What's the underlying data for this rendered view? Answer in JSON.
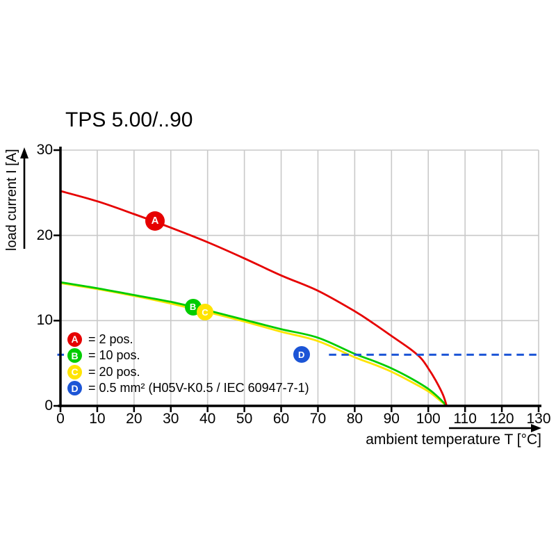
{
  "title": "TPS 5.00/..90",
  "colors": {
    "red": "#e60000",
    "green": "#00cc00",
    "yellow": "#ffe400",
    "blue": "#1c55d6",
    "grid": "#c9c9c9",
    "axis": "#000000",
    "background": "#ffffff"
  },
  "legend": {
    "items": [
      {
        "letter": "A",
        "color": "#e60000",
        "label": "= 2 pos."
      },
      {
        "letter": "B",
        "color": "#00cc00",
        "label": "= 10 pos."
      },
      {
        "letter": "C",
        "color": "#ffe400",
        "label": "= 20 pos."
      },
      {
        "letter": "D",
        "color": "#1c55d6",
        "label": "= 0.5 mm² (H05V-K0.5 / IEC 60947-7-1)"
      }
    ]
  },
  "chart_data": {
    "type": "line",
    "title": "TPS 5.00/..90",
    "xlabel": "ambient temperature T [°C]",
    "ylabel": "load current I [A]",
    "xlim": [
      0,
      130
    ],
    "ylim": [
      0,
      30
    ],
    "x_ticks": [
      0,
      10,
      20,
      30,
      40,
      50,
      60,
      70,
      80,
      90,
      100,
      110,
      120,
      130
    ],
    "y_ticks": [
      0,
      10,
      20,
      30
    ],
    "grid": true,
    "legend_position": "inside lower-left",
    "series": [
      {
        "name": "C",
        "label": "20 pos.",
        "color": "#ffe400",
        "style": "solid",
        "points": [
          [
            0,
            14.4
          ],
          [
            10,
            13.7
          ],
          [
            20,
            12.9
          ],
          [
            30,
            12.0
          ],
          [
            40,
            11.0
          ],
          [
            50,
            9.9
          ],
          [
            60,
            8.7
          ],
          [
            70,
            7.6
          ],
          [
            80,
            5.7
          ],
          [
            85,
            4.9
          ],
          [
            90,
            4.0
          ],
          [
            95,
            2.9
          ],
          [
            100,
            1.7
          ],
          [
            103,
            0.7
          ],
          [
            105,
            0
          ]
        ]
      },
      {
        "name": "B",
        "label": "10 pos.",
        "color": "#00cc00",
        "style": "solid",
        "points": [
          [
            0,
            14.5
          ],
          [
            10,
            13.8
          ],
          [
            20,
            13.0
          ],
          [
            30,
            12.2
          ],
          [
            40,
            11.2
          ],
          [
            50,
            10.1
          ],
          [
            60,
            9.0
          ],
          [
            70,
            8.0
          ],
          [
            80,
            6.1
          ],
          [
            85,
            5.3
          ],
          [
            90,
            4.4
          ],
          [
            95,
            3.3
          ],
          [
            100,
            2.0
          ],
          [
            103,
            0.9
          ],
          [
            105,
            0
          ]
        ]
      },
      {
        "name": "A",
        "label": "2 pos.",
        "color": "#e60000",
        "style": "solid",
        "points": [
          [
            0,
            25.2
          ],
          [
            10,
            24.0
          ],
          [
            20,
            22.5
          ],
          [
            30,
            20.9
          ],
          [
            40,
            19.2
          ],
          [
            50,
            17.3
          ],
          [
            60,
            15.3
          ],
          [
            70,
            13.5
          ],
          [
            80,
            11.1
          ],
          [
            85,
            9.7
          ],
          [
            90,
            8.2
          ],
          [
            95,
            6.7
          ],
          [
            98,
            5.6
          ],
          [
            100,
            4.4
          ],
          [
            102,
            3.0
          ],
          [
            104,
            1.3
          ],
          [
            105,
            0
          ]
        ]
      },
      {
        "name": "D",
        "label": "0.5 mm² (H05V-K0.5 / IEC 60947-7-1)",
        "color": "#1c55d6",
        "style": "dashed",
        "points": [
          [
            73,
            6
          ],
          [
            130,
            6
          ]
        ],
        "axis_tick_value": 6
      }
    ],
    "markers": [
      {
        "letter": "A",
        "t": 25.7,
        "i": 21.7,
        "color": "#e60000"
      },
      {
        "letter": "B",
        "t": 36.0,
        "i": 11.6,
        "color": "#00cc00"
      },
      {
        "letter": "C",
        "t": 39.3,
        "i": 11.0,
        "color": "#ffe400"
      },
      {
        "letter": "D",
        "t": 65.5,
        "i": 6.0,
        "color": "#1c55d6"
      }
    ]
  }
}
